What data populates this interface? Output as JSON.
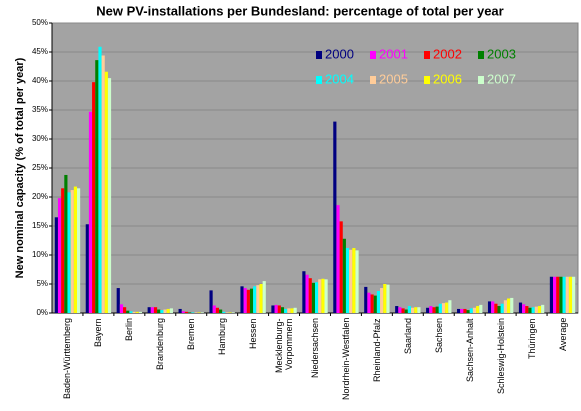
{
  "chart_data": {
    "type": "bar",
    "title": "New PV-installations per Bundesland: percentage of total per year",
    "y_label": "New nominal capacity (% of total per year)",
    "categories": [
      "Baden-Württemberg",
      "Bayern",
      "Berlin",
      "Brandenburg",
      "Bremen",
      "Hamburg",
      "Hessen",
      "Mecklenburg-\nVorpommern",
      "Niedersachsen",
      "Nordrhein-Westfalen",
      "Rheinland-Pfalz",
      "Saarland",
      "Sachsen",
      "Sachsen-Anhalt",
      "Schleswig-Holstein",
      "Thüringen",
      "Average"
    ],
    "series": [
      {
        "name": "2000",
        "color": "#000080",
        "values": [
          16.5,
          15.3,
          4.3,
          1.0,
          0.7,
          3.9,
          4.6,
          1.3,
          7.2,
          33.0,
          4.5,
          1.2,
          0.9,
          0.7,
          2.0,
          1.8,
          6.25
        ]
      },
      {
        "name": "2001",
        "color": "#ff00ff",
        "values": [
          19.8,
          34.7,
          1.5,
          1.0,
          0.3,
          1.3,
          4.3,
          1.4,
          6.6,
          18.6,
          3.5,
          1.0,
          1.2,
          0.7,
          2.0,
          1.5,
          6.25
        ]
      },
      {
        "name": "2002",
        "color": "#ff0000",
        "values": [
          21.5,
          39.8,
          1.0,
          1.0,
          0.2,
          0.9,
          4.0,
          1.3,
          6.0,
          15.8,
          3.2,
          0.8,
          1.0,
          0.7,
          1.6,
          1.2,
          6.25
        ]
      },
      {
        "name": "2003",
        "color": "#008000",
        "values": [
          23.8,
          43.6,
          0.4,
          0.6,
          0.1,
          0.6,
          4.2,
          1.0,
          5.2,
          12.8,
          3.0,
          0.6,
          1.1,
          0.5,
          1.2,
          0.9,
          6.25
        ]
      },
      {
        "name": "2004",
        "color": "#00ffff",
        "values": [
          20.8,
          45.9,
          0.3,
          0.5,
          0.1,
          0.2,
          4.6,
          0.7,
          5.3,
          11.2,
          3.8,
          1.2,
          1.6,
          0.8,
          1.6,
          1.0,
          6.25
        ]
      },
      {
        "name": "2005",
        "color": "#ffcc99",
        "values": [
          21.2,
          44.4,
          0.2,
          0.6,
          0.1,
          0.1,
          4.8,
          0.8,
          5.8,
          10.9,
          4.3,
          0.9,
          1.7,
          0.9,
          2.2,
          1.1,
          6.25
        ]
      },
      {
        "name": "2006",
        "color": "#ffff00",
        "values": [
          21.8,
          41.6,
          0.2,
          0.7,
          0.1,
          0.1,
          5.0,
          0.8,
          5.9,
          11.2,
          5.0,
          1.0,
          1.8,
          1.2,
          2.5,
          1.2,
          6.25
        ]
      },
      {
        "name": "2007",
        "color": "#ccffcc",
        "values": [
          21.5,
          40.5,
          0.2,
          0.8,
          0.1,
          0.1,
          5.5,
          0.9,
          5.8,
          10.8,
          4.9,
          1.0,
          2.2,
          1.4,
          2.6,
          1.4,
          6.25
        ]
      }
    ],
    "ylim": [
      0,
      50
    ],
    "yticks": [
      {
        "value": 0,
        "label": "0%"
      },
      {
        "value": 5,
        "label": "5%"
      },
      {
        "value": 10,
        "label": "10%"
      },
      {
        "value": 15,
        "label": "15%"
      },
      {
        "value": 20,
        "label": "20%"
      },
      {
        "value": 25,
        "label": "25%"
      },
      {
        "value": 30,
        "label": "30%"
      },
      {
        "value": 35,
        "label": "35%"
      },
      {
        "value": 40,
        "label": "40%"
      },
      {
        "value": 45,
        "label": "45%"
      },
      {
        "value": 50,
        "label": "50%"
      }
    ],
    "grid": true,
    "legend": "top-right"
  }
}
